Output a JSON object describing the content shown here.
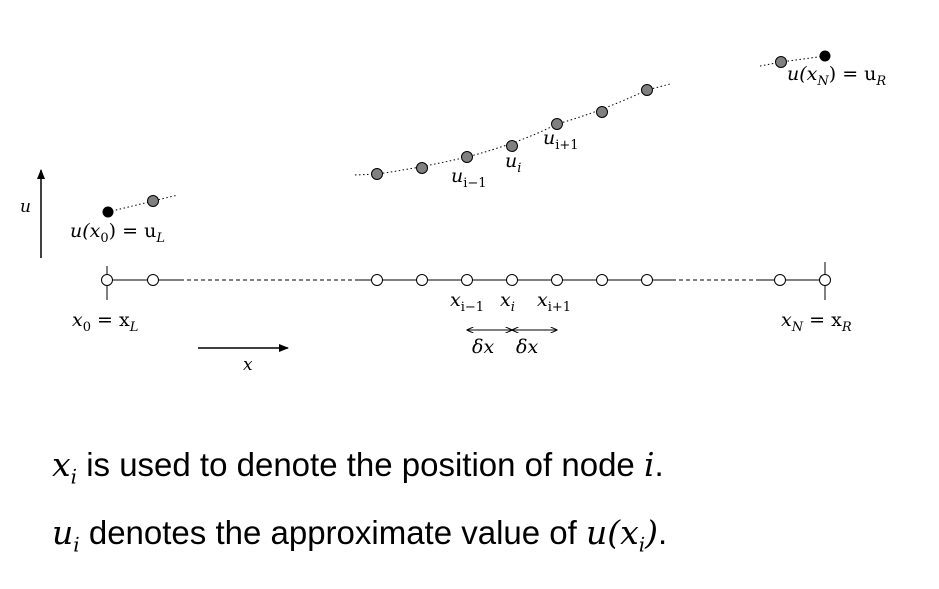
{
  "axis_labels": {
    "u": "u",
    "x": "x"
  },
  "boundary_labels": {
    "left_value": {
      "base": "u(x",
      "sub": "0",
      "mid": ") = u",
      "sub2": "L"
    },
    "right_value": {
      "base": "u(x",
      "sub": "N",
      "mid": ") = u",
      "sub2": "R"
    },
    "left_position": {
      "base": "x",
      "sub": "0",
      "mid": " = x",
      "sub2": "L"
    },
    "right_position": {
      "base": "x",
      "sub": "N",
      "mid": " = x",
      "sub2": "R"
    }
  },
  "node_labels": {
    "u_prev": {
      "base": "u",
      "sub": "i−1"
    },
    "u_i": {
      "base": "u",
      "sub": "i"
    },
    "u_next": {
      "base": "u",
      "sub": "i+1"
    },
    "x_prev": {
      "base": "x",
      "sub": "i−1"
    },
    "x_i": {
      "base": "x",
      "sub": "i"
    },
    "x_next": {
      "base": "x",
      "sub": "i+1"
    }
  },
  "spacing_labels": {
    "left": "δx",
    "right": "δx"
  },
  "caption": {
    "line1": {
      "sym": "x",
      "sub": "i",
      "text": " is used to denote the position of node ",
      "end_sym": "i",
      "end": "."
    },
    "line2": {
      "sym": "u",
      "sub": "i",
      "text": " denotes the approximate value of ",
      "end_sym_base": "u(x",
      "end_sym_sub": "i",
      "end_sym_close": ")",
      "end": "."
    }
  },
  "colors": {
    "line": "#000000",
    "node_fill": "#808080",
    "boundary_fill": "#000000"
  }
}
